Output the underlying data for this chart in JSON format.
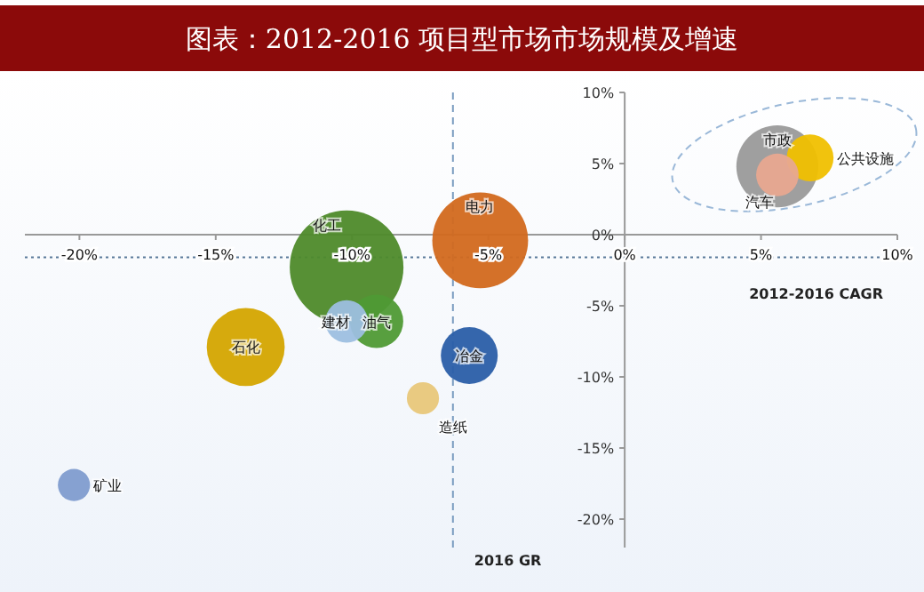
{
  "chart_data": {
    "type": "bubble",
    "title": "图表：2012-2016 项目型市场市场规模及增速",
    "series": [
      {
        "name": "化工",
        "color": "#4e8a2a",
        "x": [
          -10.2
        ],
        "values": [
          -2.3
        ],
        "sizes": [
          1
        ]
      },
      {
        "name": "电力",
        "color": "#d2691e",
        "x": [
          -5.3
        ],
        "values": [
          -0.4
        ],
        "sizes": [
          0.71
        ]
      },
      {
        "name": "石化",
        "color": "#d4a500",
        "x": [
          -13.9
        ],
        "values": [
          -7.9
        ],
        "sizes": [
          0.47
        ]
      },
      {
        "name": "油气",
        "color": "#4f9a35",
        "x": [
          -9.1
        ],
        "values": [
          -6.1
        ],
        "sizes": [
          0.22
        ]
      },
      {
        "name": "建材",
        "color": "#9dbfe0",
        "x": [
          -10.2
        ],
        "values": [
          -6.1
        ],
        "sizes": [
          0.14
        ]
      },
      {
        "name": "冶金",
        "color": "#2a5ea8",
        "x": [
          -5.7
        ],
        "values": [
          -8.5
        ],
        "sizes": [
          0.25
        ]
      },
      {
        "name": "造纸",
        "color": "#e8c77a",
        "x": [
          -7.4
        ],
        "values": [
          -11.5
        ],
        "sizes": [
          0.08
        ]
      },
      {
        "name": "矿业",
        "color": "#7f9ccf",
        "x": [
          -20.2
        ],
        "values": [
          -17.6
        ],
        "sizes": [
          0.08
        ]
      },
      {
        "name": "市政",
        "color": "#9a9a9a",
        "x": [
          5.6
        ],
        "values": [
          4.8
        ],
        "sizes": [
          0.52
        ]
      },
      {
        "name": "公共设施",
        "color": "#f0c000",
        "x": [
          6.8
        ],
        "values": [
          5.4
        ],
        "sizes": [
          0.17
        ]
      },
      {
        "name": "汽车",
        "color": "#e8a890",
        "x": [
          5.6
        ],
        "values": [
          4.2
        ],
        "sizes": [
          0.14
        ]
      }
    ],
    "xlim": [
      -22,
      10
    ],
    "xticks": [
      {
        "value": -20,
        "label": "-20%"
      },
      {
        "value": -15,
        "label": "-15%"
      },
      {
        "value": -10,
        "label": "-10%"
      },
      {
        "value": -5,
        "label": "-5%"
      },
      {
        "value": 0,
        "label": "0%"
      },
      {
        "value": 5,
        "label": "5%"
      },
      {
        "value": 10,
        "label": "10%"
      }
    ],
    "ylim": [
      -22,
      10
    ],
    "yticks": [
      {
        "value": -20,
        "label": "-20%"
      },
      {
        "value": -15,
        "label": "-15%"
      },
      {
        "value": -10,
        "label": "-10%"
      },
      {
        "value": -5,
        "label": "-5%"
      },
      {
        "value": 0,
        "label": "0%"
      },
      {
        "value": 5,
        "label": "5%"
      },
      {
        "value": 10,
        "label": "10%"
      }
    ],
    "ref_lines": [
      {
        "axis": "x",
        "value": -6.3,
        "line_style": "dashed",
        "color": "#7a9cc0"
      },
      {
        "axis": "y",
        "value": -1.6,
        "line_style": "dotted",
        "color": "#5a7a9a"
      }
    ],
    "annotations": [
      "2016 GR",
      "2012-2016 CAGR"
    ],
    "grid": false
  }
}
